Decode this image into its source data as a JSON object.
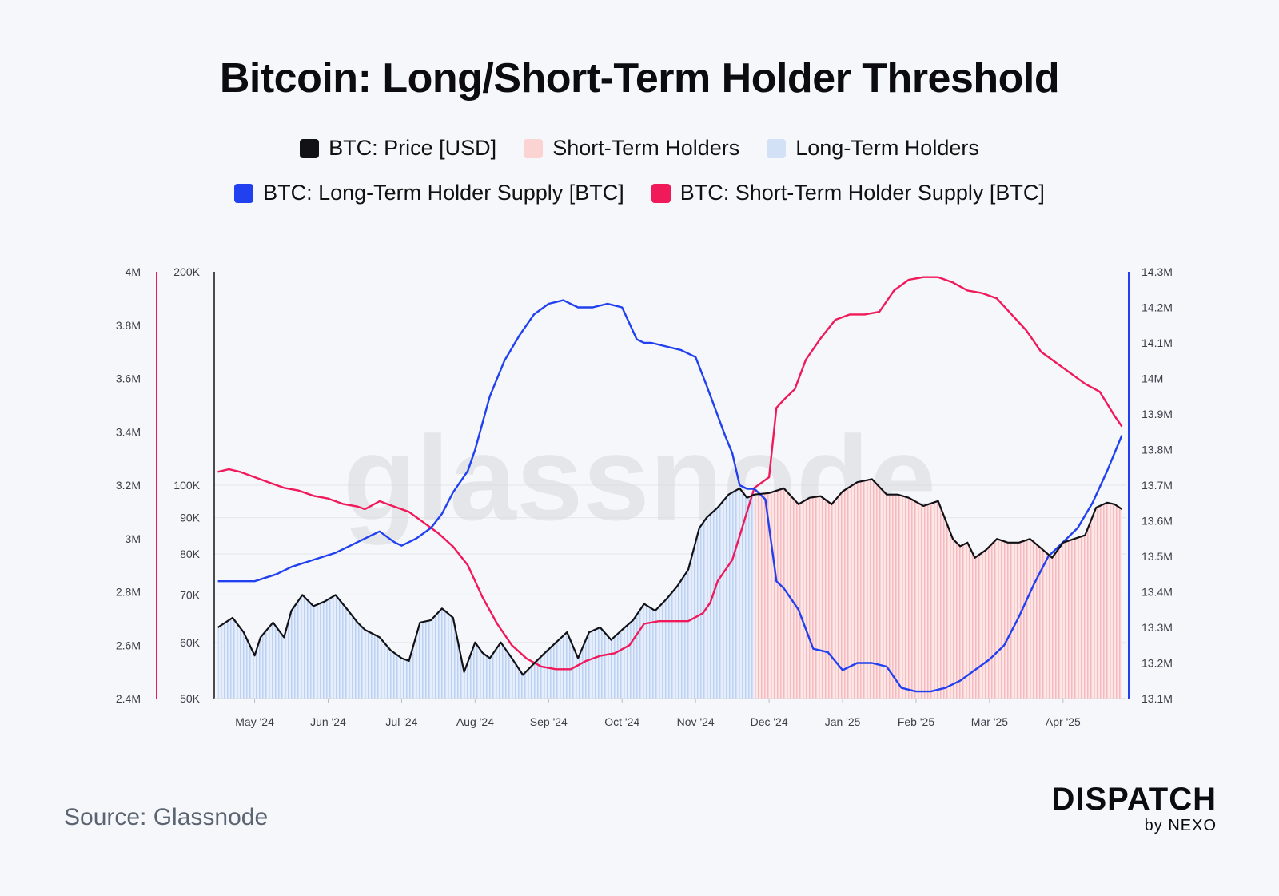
{
  "chart_data": {
    "type": "line",
    "title": "Bitcoin: Long/Short-Term Holder Threshold",
    "legend": [
      {
        "label": "BTC: Price [USD]",
        "color": "#111116"
      },
      {
        "label": "Short-Term Holders",
        "color": "#fbd3d3"
      },
      {
        "label": "Long-Term Holders",
        "color": "#d3e1f7"
      },
      {
        "label": "BTC: Long-Term Holder Supply [BTC]",
        "color": "#2140f0"
      },
      {
        "label": "BTC: Short-Term Holder Supply [BTC]",
        "color": "#f0195a"
      }
    ],
    "x_ticks": [
      "May '24",
      "Jun '24",
      "Jul '24",
      "Aug '24",
      "Sep '24",
      "Oct '24",
      "Nov '24",
      "Dec '24",
      "Jan '25",
      "Feb '25",
      "Mar '25",
      "Apr '25"
    ],
    "x_tick_pos": [
      0.5,
      1.5,
      2.5,
      3.5,
      4.5,
      5.5,
      6.5,
      7.5,
      8.5,
      9.5,
      10.5,
      11.5
    ],
    "x_range": [
      -0.05,
      12.35
    ],
    "threshold_x": 7.3,
    "axes": {
      "sth_supply": {
        "ticks": [
          "4M",
          "3.8M",
          "3.6M",
          "3.4M",
          "3.2M",
          "3M",
          "2.8M",
          "2.6M",
          "2.4M"
        ],
        "ylim": [
          2.4,
          4.0
        ],
        "color": "#f0195a"
      },
      "price": {
        "ticks": [
          "200K",
          "100K",
          "90K",
          "80K",
          "70K",
          "60K",
          "50K"
        ],
        "tick_values": [
          200000,
          100000,
          90000,
          80000,
          70000,
          60000,
          50000
        ],
        "ylim": [
          50000,
          200000
        ],
        "scale": "log",
        "color": "#111116"
      },
      "lth_supply": {
        "ticks": [
          "14.3M",
          "14.2M",
          "14.1M",
          "14M",
          "13.9M",
          "13.8M",
          "13.7M",
          "13.6M",
          "13.5M",
          "13.4M",
          "13.3M",
          "13.2M",
          "13.1M"
        ],
        "ylim": [
          13.1,
          14.3
        ],
        "color": "#2140f0"
      }
    },
    "series": [
      {
        "name": "BTC: Price [USD]",
        "axis": "price",
        "x": [
          0,
          0.2,
          0.35,
          0.5,
          0.58,
          0.75,
          0.9,
          1.0,
          1.15,
          1.3,
          1.45,
          1.6,
          1.75,
          1.9,
          2.0,
          2.2,
          2.35,
          2.5,
          2.6,
          2.75,
          2.9,
          3.05,
          3.2,
          3.35,
          3.5,
          3.6,
          3.7,
          3.85,
          4.0,
          4.15,
          4.3,
          4.45,
          4.6,
          4.75,
          4.9,
          5.05,
          5.2,
          5.35,
          5.5,
          5.65,
          5.8,
          5.95,
          6.1,
          6.25,
          6.4,
          6.55,
          6.65,
          6.8,
          6.95,
          7.1,
          7.2,
          7.3,
          7.5,
          7.7,
          7.9,
          8.05,
          8.2,
          8.35,
          8.5,
          8.7,
          8.9,
          9.1,
          9.25,
          9.4,
          9.6,
          9.8,
          10.0,
          10.1,
          10.2,
          10.3,
          10.45,
          10.6,
          10.75,
          10.9,
          11.05,
          11.2,
          11.35,
          11.5,
          11.65,
          11.8,
          11.95,
          12.1,
          12.2,
          12.3
        ],
        "values": [
          63000,
          65000,
          62000,
          57500,
          61000,
          64000,
          61000,
          66500,
          70000,
          67500,
          68500,
          70000,
          67000,
          64000,
          62500,
          61000,
          58500,
          57000,
          56500,
          64000,
          64500,
          67000,
          65000,
          54500,
          60000,
          58000,
          57000,
          60000,
          57000,
          54000,
          56000,
          58000,
          60000,
          62000,
          57000,
          62000,
          63000,
          60500,
          62500,
          64500,
          68000,
          66500,
          69000,
          72000,
          76000,
          87000,
          90000,
          93000,
          97000,
          99000,
          96000,
          97000,
          97500,
          99000,
          94000,
          96000,
          96500,
          94000,
          98000,
          101000,
          102000,
          97000,
          97000,
          96000,
          93500,
          95000,
          84000,
          82000,
          83000,
          79000,
          81000,
          84000,
          83000,
          83000,
          84000,
          81500,
          79000,
          83000,
          84000,
          85000,
          93000,
          94500,
          94000,
          92500
        ]
      },
      {
        "name": "BTC: Long-Term Holder Supply [BTC]",
        "axis": "lth_supply",
        "x": [
          0,
          0.3,
          0.5,
          0.8,
          1.0,
          1.3,
          1.6,
          1.8,
          2.0,
          2.2,
          2.4,
          2.5,
          2.7,
          2.9,
          3.05,
          3.2,
          3.4,
          3.5,
          3.7,
          3.9,
          4.1,
          4.3,
          4.5,
          4.7,
          4.9,
          5.1,
          5.3,
          5.5,
          5.7,
          5.8,
          5.9,
          6.1,
          6.3,
          6.5,
          6.65,
          6.9,
          7.0,
          7.1,
          7.2,
          7.3,
          7.45,
          7.6,
          7.7,
          7.9,
          8.1,
          8.3,
          8.5,
          8.7,
          8.9,
          9.1,
          9.3,
          9.5,
          9.7,
          9.9,
          10.1,
          10.3,
          10.5,
          10.7,
          10.9,
          11.1,
          11.3,
          11.5,
          11.7,
          11.9,
          12.1,
          12.3
        ],
        "values": [
          13.43,
          13.43,
          13.43,
          13.45,
          13.47,
          13.49,
          13.51,
          13.53,
          13.55,
          13.57,
          13.54,
          13.53,
          13.55,
          13.58,
          13.62,
          13.68,
          13.74,
          13.8,
          13.95,
          14.05,
          14.12,
          14.18,
          14.21,
          14.22,
          14.2,
          14.2,
          14.21,
          14.2,
          14.11,
          14.1,
          14.1,
          14.09,
          14.08,
          14.06,
          13.98,
          13.84,
          13.79,
          13.7,
          13.69,
          13.69,
          13.66,
          13.43,
          13.41,
          13.35,
          13.24,
          13.23,
          13.18,
          13.2,
          13.2,
          13.19,
          13.13,
          13.12,
          13.12,
          13.13,
          13.15,
          13.18,
          13.21,
          13.25,
          13.33,
          13.42,
          13.5,
          13.54,
          13.58,
          13.65,
          13.74,
          13.84
        ]
      },
      {
        "name": "BTC: Short-Term Holder Supply [BTC]",
        "axis": "sth_supply",
        "x": [
          0,
          0.15,
          0.3,
          0.5,
          0.7,
          0.9,
          1.1,
          1.3,
          1.5,
          1.7,
          1.9,
          2.0,
          2.2,
          2.4,
          2.6,
          2.8,
          3.0,
          3.2,
          3.4,
          3.6,
          3.8,
          4.0,
          4.2,
          4.4,
          4.6,
          4.8,
          5.0,
          5.2,
          5.4,
          5.6,
          5.8,
          6.0,
          6.2,
          6.4,
          6.6,
          6.7,
          6.8,
          7.0,
          7.2,
          7.3,
          7.5,
          7.6,
          7.7,
          7.85,
          8.0,
          8.2,
          8.4,
          8.6,
          8.8,
          9.0,
          9.2,
          9.4,
          9.6,
          9.8,
          10.0,
          10.2,
          10.4,
          10.6,
          10.8,
          11.0,
          11.2,
          11.4,
          11.6,
          11.8,
          12.0,
          12.2,
          12.3
        ],
        "values": [
          3.25,
          3.26,
          3.25,
          3.23,
          3.21,
          3.19,
          3.18,
          3.16,
          3.15,
          3.13,
          3.12,
          3.11,
          3.14,
          3.12,
          3.1,
          3.06,
          3.02,
          2.97,
          2.9,
          2.78,
          2.68,
          2.6,
          2.55,
          2.52,
          2.51,
          2.51,
          2.54,
          2.56,
          2.57,
          2.6,
          2.68,
          2.69,
          2.69,
          2.69,
          2.72,
          2.76,
          2.84,
          2.92,
          3.1,
          3.19,
          3.23,
          3.49,
          3.52,
          3.56,
          3.67,
          3.75,
          3.82,
          3.84,
          3.84,
          3.85,
          3.93,
          3.97,
          3.98,
          3.98,
          3.96,
          3.93,
          3.92,
          3.9,
          3.84,
          3.78,
          3.7,
          3.66,
          3.62,
          3.58,
          3.55,
          3.46,
          3.42
        ]
      }
    ],
    "annotations": [
      "glassnode"
    ]
  },
  "footer": {
    "source": "Source: Glassnode",
    "brand": "DISPATCH",
    "brand_sub": "by NEXO"
  }
}
